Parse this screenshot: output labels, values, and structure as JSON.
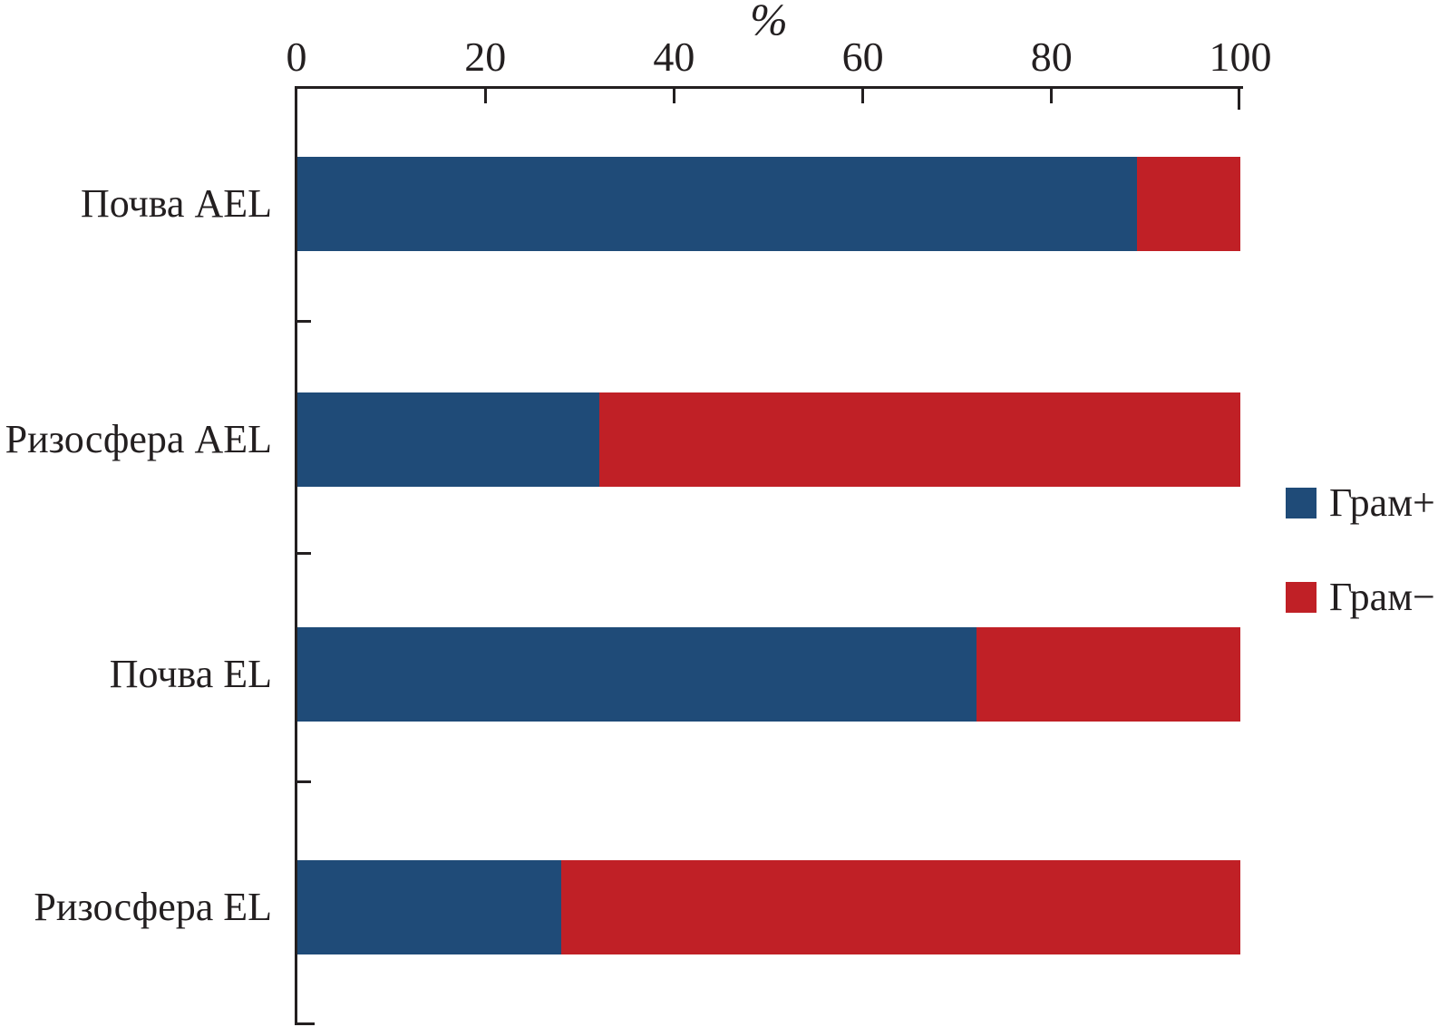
{
  "chart_data": {
    "type": "bar",
    "orientation": "horizontal",
    "stacked": true,
    "title": "",
    "xlabel": "%",
    "ylabel": "",
    "x_axis": {
      "position": "top",
      "range": [
        0,
        100
      ],
      "ticks": [
        0,
        20,
        40,
        60,
        80,
        100
      ]
    },
    "grid": false,
    "categories": [
      "Почва AEL",
      "Ризосфера AEL",
      "Почва EL",
      "Ризосфера EL"
    ],
    "series": [
      {
        "name": "Грам+",
        "color": "#1F4B78",
        "values": [
          89,
          32,
          72,
          28
        ]
      },
      {
        "name": "Грам−",
        "color": "#C02026",
        "values": [
          11,
          68,
          28,
          72
        ]
      }
    ],
    "legend": {
      "position": "right",
      "items": [
        {
          "label": "Грам+",
          "color": "#1F4B78"
        },
        {
          "label": "Грам−",
          "color": "#C02026"
        }
      ]
    }
  },
  "colors": {
    "gram_positive": "#1F4B78",
    "gram_negative": "#C02026",
    "axis": "#231F20",
    "text": "#231F20",
    "background": "#FFFFFF"
  }
}
